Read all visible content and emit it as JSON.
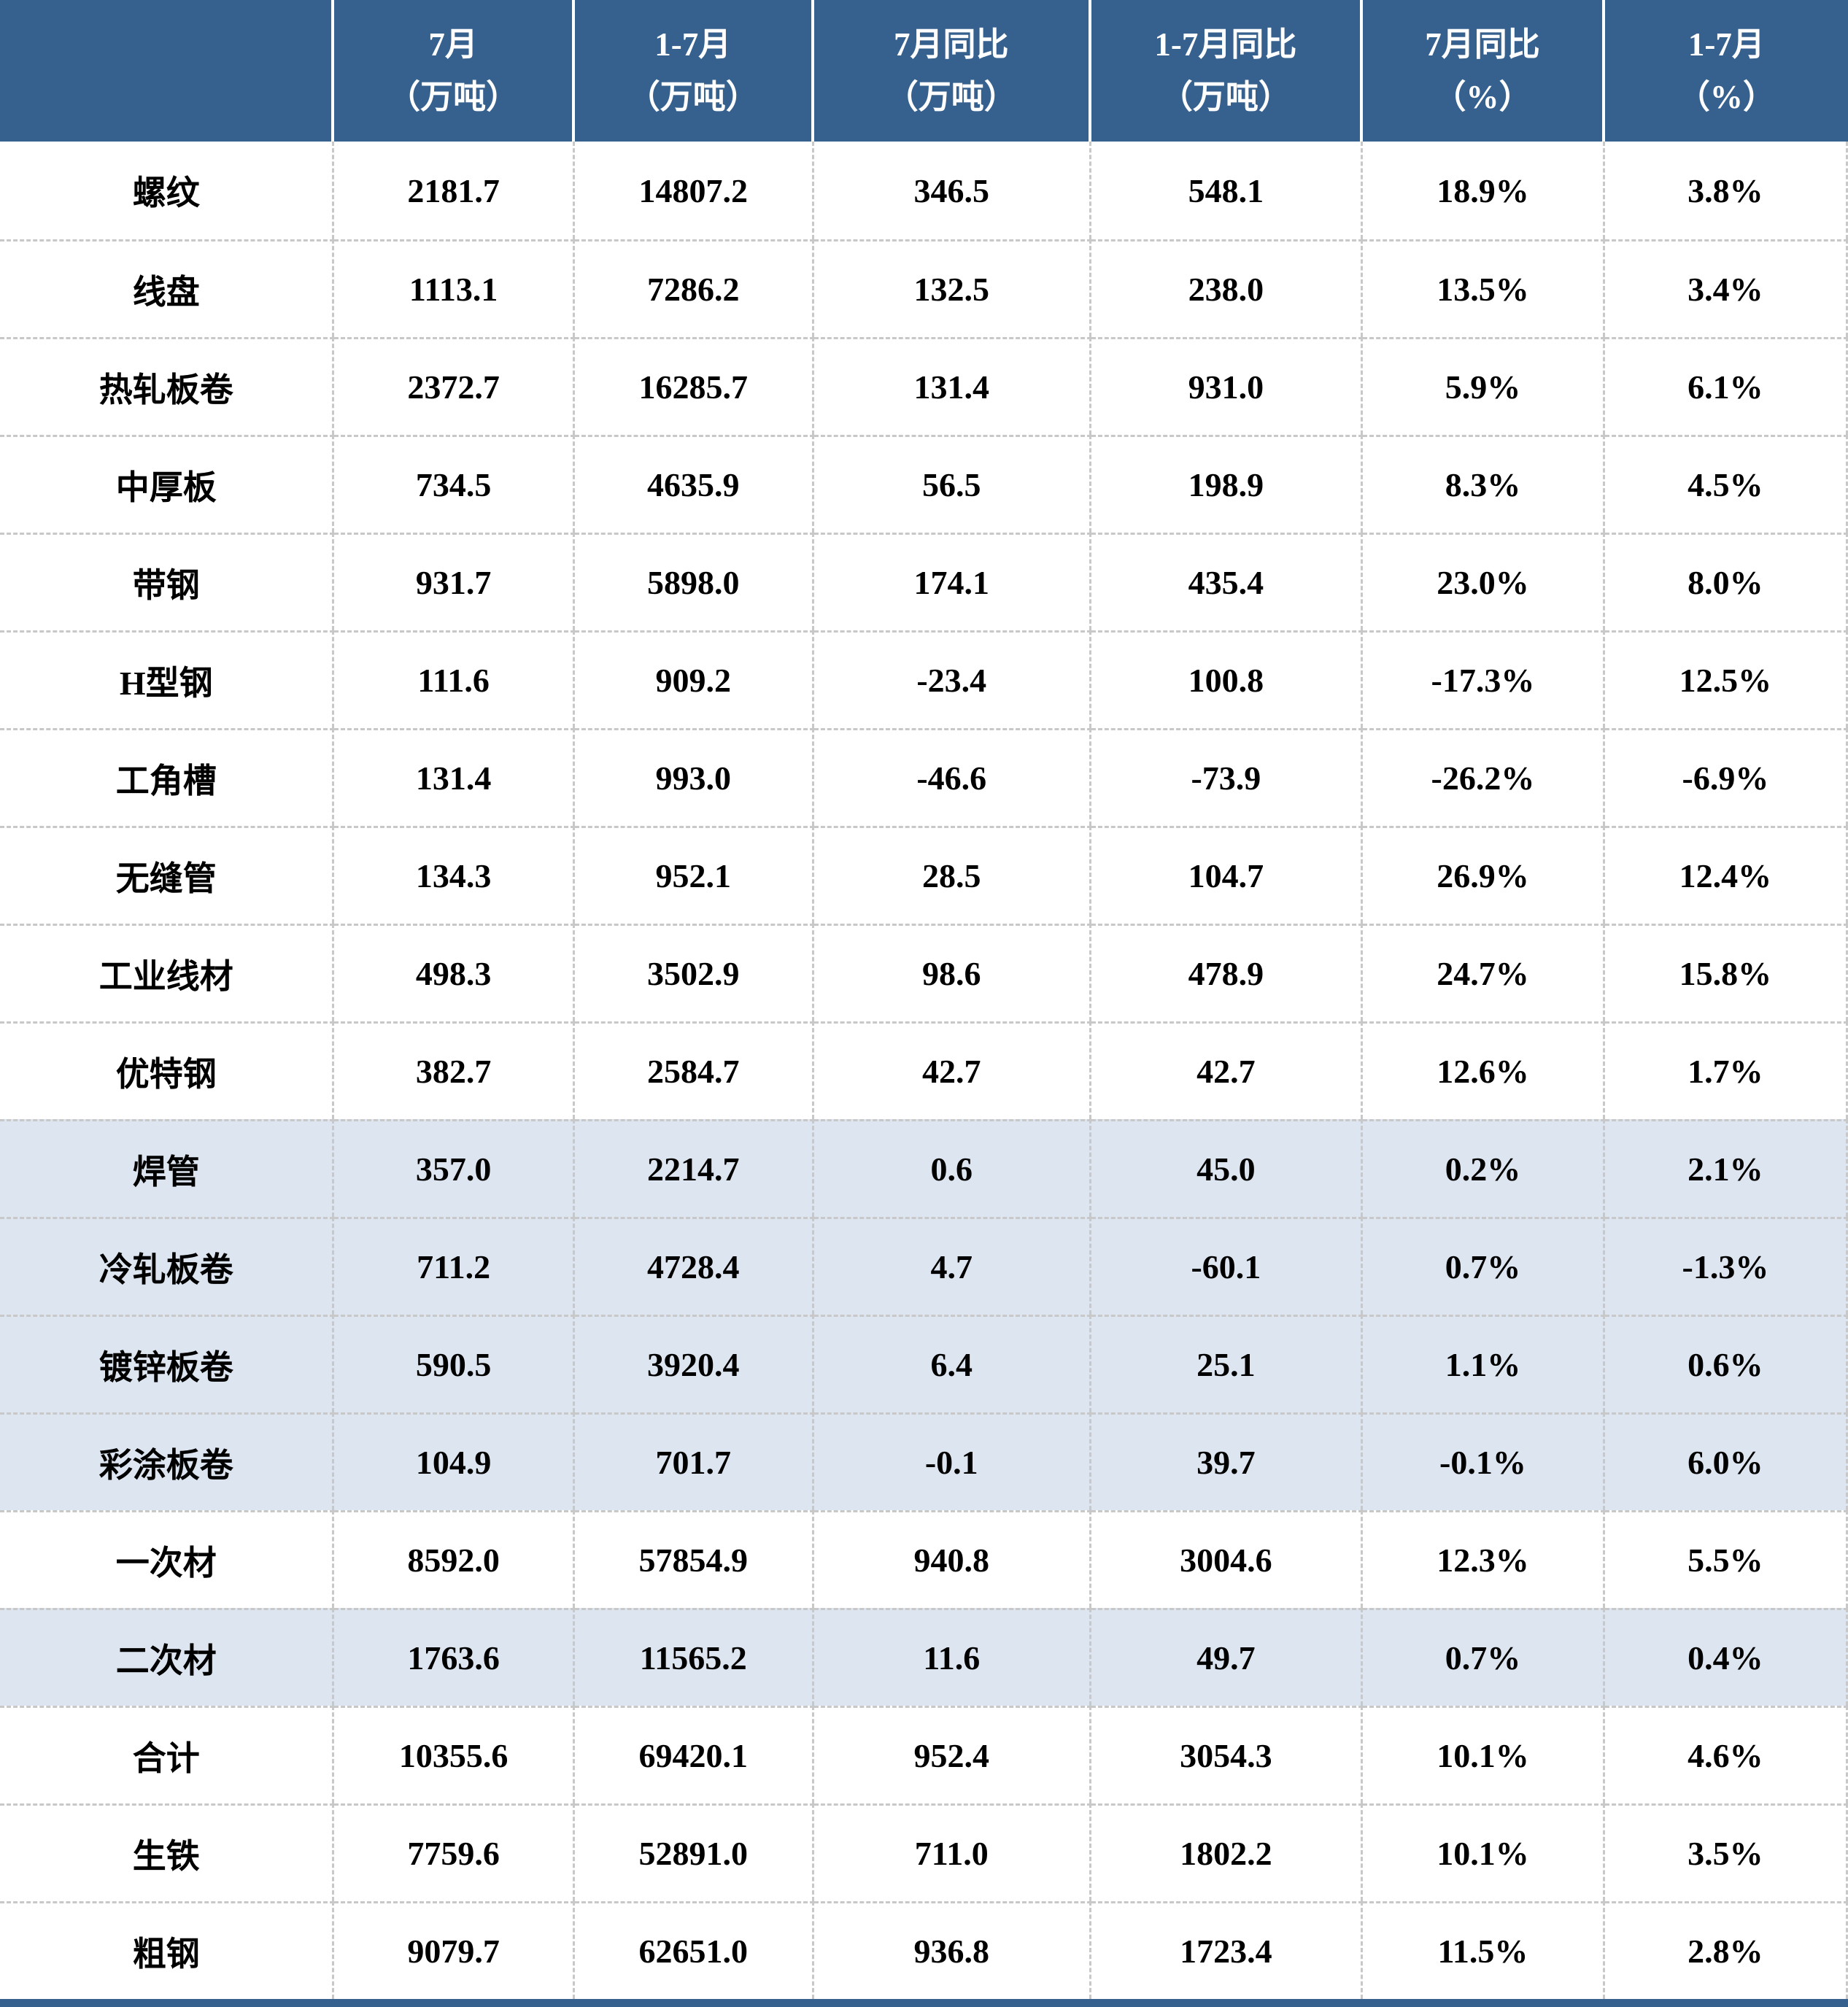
{
  "theme": {
    "header_bg": "#36618F",
    "header_text": "#FFFFFF",
    "shaded_row_bg": "#DCE5F0",
    "grid_line": "#C8C8C8",
    "body_text": "#000000",
    "footer_bar_bg": "#36618F"
  },
  "chart_data": {
    "type": "table",
    "columns": [
      {
        "line1": "",
        "line2": ""
      },
      {
        "line1": "7月",
        "line2": "（万吨）"
      },
      {
        "line1": "1-7月",
        "line2": "（万吨）"
      },
      {
        "line1": "7月同比",
        "line2": "（万吨）"
      },
      {
        "line1": "1-7月同比",
        "line2": "（万吨）"
      },
      {
        "line1": "7月同比",
        "line2": "（%）"
      },
      {
        "line1": "1-7月",
        "line2": "（%）"
      }
    ],
    "rows": [
      {
        "label": "螺纹",
        "values": [
          "2181.7",
          "14807.2",
          "346.5",
          "548.1",
          "18.9%",
          "3.8%"
        ],
        "shaded": false
      },
      {
        "label": "线盘",
        "values": [
          "1113.1",
          "7286.2",
          "132.5",
          "238.0",
          "13.5%",
          "3.4%"
        ],
        "shaded": false
      },
      {
        "label": "热轧板卷",
        "values": [
          "2372.7",
          "16285.7",
          "131.4",
          "931.0",
          "5.9%",
          "6.1%"
        ],
        "shaded": false
      },
      {
        "label": "中厚板",
        "values": [
          "734.5",
          "4635.9",
          "56.5",
          "198.9",
          "8.3%",
          "4.5%"
        ],
        "shaded": false
      },
      {
        "label": "带钢",
        "values": [
          "931.7",
          "5898.0",
          "174.1",
          "435.4",
          "23.0%",
          "8.0%"
        ],
        "shaded": false
      },
      {
        "label": "H型钢",
        "values": [
          "111.6",
          "909.2",
          "-23.4",
          "100.8",
          "-17.3%",
          "12.5%"
        ],
        "shaded": false
      },
      {
        "label": "工角槽",
        "values": [
          "131.4",
          "993.0",
          "-46.6",
          "-73.9",
          "-26.2%",
          "-6.9%"
        ],
        "shaded": false
      },
      {
        "label": "无缝管",
        "values": [
          "134.3",
          "952.1",
          "28.5",
          "104.7",
          "26.9%",
          "12.4%"
        ],
        "shaded": false
      },
      {
        "label": "工业线材",
        "values": [
          "498.3",
          "3502.9",
          "98.6",
          "478.9",
          "24.7%",
          "15.8%"
        ],
        "shaded": false
      },
      {
        "label": "优特钢",
        "values": [
          "382.7",
          "2584.7",
          "42.7",
          "42.7",
          "12.6%",
          "1.7%"
        ],
        "shaded": false
      },
      {
        "label": "焊管",
        "values": [
          "357.0",
          "2214.7",
          "0.6",
          "45.0",
          "0.2%",
          "2.1%"
        ],
        "shaded": true
      },
      {
        "label": "冷轧板卷",
        "values": [
          "711.2",
          "4728.4",
          "4.7",
          "-60.1",
          "0.7%",
          "-1.3%"
        ],
        "shaded": true
      },
      {
        "label": "镀锌板卷",
        "values": [
          "590.5",
          "3920.4",
          "6.4",
          "25.1",
          "1.1%",
          "0.6%"
        ],
        "shaded": true
      },
      {
        "label": "彩涂板卷",
        "values": [
          "104.9",
          "701.7",
          "-0.1",
          "39.7",
          "-0.1%",
          "6.0%"
        ],
        "shaded": true
      },
      {
        "label": "一次材",
        "values": [
          "8592.0",
          "57854.9",
          "940.8",
          "3004.6",
          "12.3%",
          "5.5%"
        ],
        "shaded": false
      },
      {
        "label": "二次材",
        "values": [
          "1763.6",
          "11565.2",
          "11.6",
          "49.7",
          "0.7%",
          "0.4%"
        ],
        "shaded": true
      },
      {
        "label": "合计",
        "values": [
          "10355.6",
          "69420.1",
          "952.4",
          "3054.3",
          "10.1%",
          "4.6%"
        ],
        "shaded": false
      },
      {
        "label": "生铁",
        "values": [
          "7759.6",
          "52891.0",
          "711.0",
          "1802.2",
          "10.1%",
          "3.5%"
        ],
        "shaded": false
      },
      {
        "label": "粗钢",
        "values": [
          "9079.7",
          "62651.0",
          "936.8",
          "1723.4",
          "11.5%",
          "2.8%"
        ],
        "shaded": false
      }
    ]
  }
}
